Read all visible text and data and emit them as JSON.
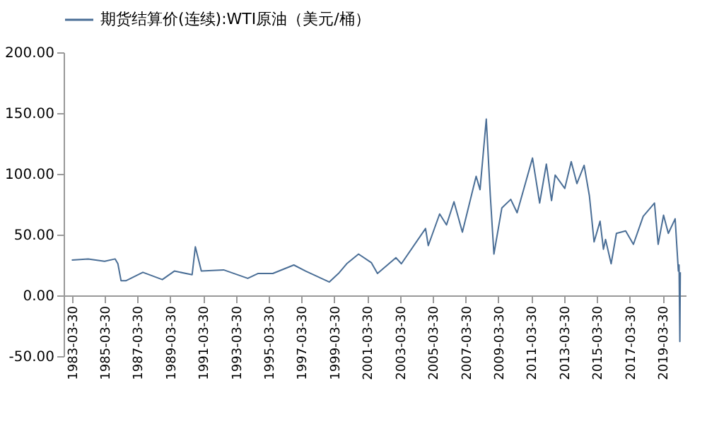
{
  "chart_data": {
    "type": "line",
    "legend": "top",
    "series": [
      {
        "name": "期货结算价(连续):WTI原油（美元/桶）",
        "color": "#4a6e96",
        "x": [
          "1983-03-30",
          "1984-03-30",
          "1985-03-30",
          "1985-11-20",
          "1986-01-20",
          "1986-04-01",
          "1986-07-15",
          "1987-07-30",
          "1988-10-05",
          "1989-06-30",
          "1990-07-30",
          "1990-10-10",
          "1991-02-20",
          "1992-06-30",
          "1993-12-20",
          "1994-08-01",
          "1995-06-30",
          "1996-10-10",
          "1997-06-30",
          "1998-12-10",
          "1999-06-30",
          "1999-12-30",
          "2000-09-20",
          "2001-06-30",
          "2001-11-15",
          "2002-12-30",
          "2003-05-01",
          "2004-10-20",
          "2004-12-20",
          "2005-08-30",
          "2006-01-30",
          "2006-07-15",
          "2007-01-18",
          "2007-11-20",
          "2008-02-15",
          "2008-07-03",
          "2008-10-01",
          "2008-12-20",
          "2009-06-15",
          "2009-12-30",
          "2010-05-20",
          "2011-04-28",
          "2011-10-04",
          "2012-03-01",
          "2012-06-25",
          "2012-09-14",
          "2013-04-15",
          "2013-09-06",
          "2014-01-10",
          "2014-06-20",
          "2014-10-15",
          "2015-01-28",
          "2015-06-10",
          "2015-08-24",
          "2015-10-10",
          "2016-02-11",
          "2016-06-08",
          "2016-12-30",
          "2017-06-21",
          "2018-01-25",
          "2018-10-03",
          "2018-12-24",
          "2019-04-23",
          "2019-08-07",
          "2020-01-06",
          "2020-03-18",
          "2020-04-02",
          "2020-04-20",
          "2020-04-30"
        ],
        "values": [
          29,
          30,
          28,
          30,
          26,
          12,
          12,
          19,
          13,
          20,
          17,
          40,
          20,
          21,
          14,
          18,
          18,
          25,
          20,
          11,
          18,
          26,
          34,
          27,
          18,
          31,
          26,
          55,
          41,
          67,
          58,
          77,
          52,
          98,
          87,
          145,
          82,
          34,
          72,
          79,
          68,
          113,
          76,
          108,
          78,
          99,
          88,
          110,
          92,
          107,
          82,
          44,
          61,
          38,
          46,
          26,
          51,
          53,
          42,
          65,
          76,
          42,
          66,
          51,
          63,
          20,
          25,
          -38,
          19
        ]
      }
    ],
    "xlim": [
      "1982-09-30",
      "2020-08-30"
    ],
    "xticks": [
      "1983-03-30",
      "1985-03-30",
      "1987-03-30",
      "1989-03-30",
      "1991-03-30",
      "1993-03-30",
      "1995-03-30",
      "1997-03-30",
      "1999-03-30",
      "2001-03-30",
      "2003-03-30",
      "2005-03-30",
      "2007-03-30",
      "2009-03-30",
      "2011-03-30",
      "2013-03-30",
      "2015-03-30",
      "2017-03-30",
      "2019-03-30"
    ],
    "ylim": [
      -50,
      200
    ],
    "yticks": [
      {
        "value": -50,
        "label": "-50.00"
      },
      {
        "value": 0,
        "label": "0.00"
      },
      {
        "value": 50,
        "label": "50.00"
      },
      {
        "value": 100,
        "label": "100.00"
      },
      {
        "value": 150,
        "label": "150.00"
      },
      {
        "value": 200,
        "label": "200.00"
      }
    ],
    "grid": false,
    "marker": "none",
    "line_style": "solid"
  }
}
